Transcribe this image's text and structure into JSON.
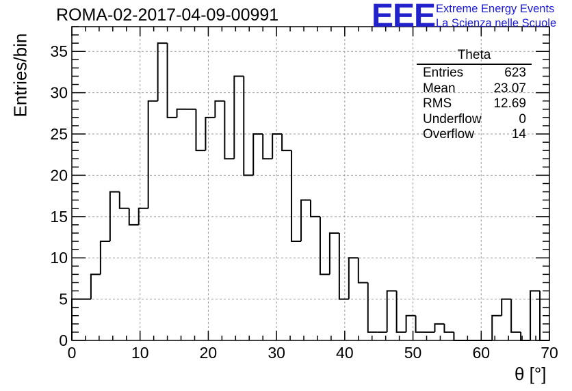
{
  "chart_data": {
    "type": "histogram",
    "title": "ROMA-02-2017-04-09-00991",
    "xlabel": "θ [°]",
    "ylabel": "Entries/bin",
    "xlim": [
      0,
      70
    ],
    "ylim": [
      0,
      38
    ],
    "bin_width": 1.4,
    "x_ticks": [
      "0",
      "10",
      "20",
      "30",
      "40",
      "50",
      "60",
      "70"
    ],
    "y_ticks": [
      "0",
      "5",
      "10",
      "15",
      "20",
      "25",
      "30",
      "35"
    ],
    "grid": true,
    "bin_counts": [
      5,
      5,
      8,
      12,
      18,
      16,
      14,
      16,
      29,
      36,
      27,
      28,
      28,
      23,
      27,
      29,
      22,
      32,
      20,
      25,
      22,
      25,
      23,
      12,
      17,
      15,
      8,
      13,
      5,
      10,
      7,
      1,
      1,
      6,
      1,
      3,
      1,
      1,
      2,
      1,
      0,
      0,
      0,
      0,
      3,
      5,
      1,
      0,
      6,
      0
    ],
    "stats_box": {
      "title": "Theta",
      "rows": [
        {
          "label": "Entries",
          "value": "623"
        },
        {
          "label": "Mean",
          "value": "23.07"
        },
        {
          "label": "RMS",
          "value": "12.69"
        },
        {
          "label": "Underflow",
          "value": "0"
        },
        {
          "label": "Overflow",
          "value": "14"
        }
      ]
    }
  },
  "logo": {
    "text": "EEE",
    "line1": "Extreme Energy Events",
    "line2": "La Scienza nelle Scuole",
    "color": "#2222cc"
  }
}
